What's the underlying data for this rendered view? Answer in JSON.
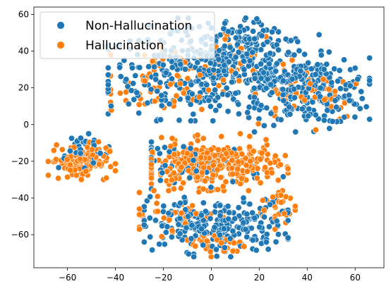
{
  "chart_data": {
    "type": "scatter",
    "title": "",
    "xlabel": "",
    "ylabel": "",
    "xlim": [
      -74,
      72
    ],
    "ylim": [
      -78,
      64
    ],
    "xticks": [
      -60,
      -40,
      -20,
      0,
      20,
      40,
      60
    ],
    "yticks": [
      -60,
      -40,
      -20,
      0,
      20,
      40,
      60
    ],
    "grid": false,
    "legend_position": "top-left",
    "series": [
      {
        "name": "Non-Hallucination",
        "color": "#1f77b4",
        "clusters": [
          {
            "cx": 0,
            "cy": 28,
            "sx": 22,
            "sy": 12,
            "n": 420,
            "xmin": -43,
            "xmax": 66,
            "ymin": 2,
            "ymax": 58
          },
          {
            "cx": 42,
            "cy": 18,
            "sx": 12,
            "sy": 9,
            "n": 220,
            "xmin": 18,
            "xmax": 66,
            "ymin": -4,
            "ymax": 43
          },
          {
            "cx": 15,
            "cy": 45,
            "sx": 7,
            "sy": 7,
            "n": 80,
            "xmin": 0,
            "xmax": 28,
            "ymin": 30,
            "ymax": 58
          },
          {
            "cx": -55,
            "cy": -14,
            "sx": 6,
            "sy": 5,
            "n": 40,
            "xmin": -68,
            "xmax": -40,
            "ymin": -26,
            "ymax": -5
          },
          {
            "cx": 0,
            "cy": -55,
            "sx": 16,
            "sy": 7,
            "n": 260,
            "xmin": -28,
            "xmax": 32,
            "ymin": -72,
            "ymax": -36
          },
          {
            "cx": -8,
            "cy": -22,
            "sx": 15,
            "sy": 6,
            "n": 70,
            "xmin": -25,
            "xmax": 30,
            "ymin": -35,
            "ymax": -5
          }
        ]
      },
      {
        "name": "Hallucination",
        "color": "#ff7f0e",
        "clusters": [
          {
            "cx": 0,
            "cy": -22,
            "sx": 14,
            "sy": 6,
            "n": 330,
            "xmin": -25,
            "xmax": 32,
            "ymin": -36,
            "ymax": -5
          },
          {
            "cx": -55,
            "cy": -20,
            "sx": 6,
            "sy": 5,
            "n": 110,
            "xmin": -68,
            "xmax": -40,
            "ymin": -30,
            "ymax": -6
          },
          {
            "cx": -22,
            "cy": 22,
            "sx": 12,
            "sy": 10,
            "n": 70,
            "xmin": -42,
            "xmax": 5,
            "ymin": 5,
            "ymax": 58
          },
          {
            "cx": -15,
            "cy": -48,
            "sx": 10,
            "sy": 6,
            "n": 40,
            "xmin": -30,
            "xmax": 5,
            "ymin": -65,
            "ymax": -36
          },
          {
            "cx": 28,
            "cy": -45,
            "sx": 4,
            "sy": 5,
            "n": 35,
            "xmin": 18,
            "xmax": 35,
            "ymin": -58,
            "ymax": -36
          },
          {
            "cx": 3,
            "cy": -65,
            "sx": 6,
            "sy": 4,
            "n": 35,
            "xmin": -10,
            "xmax": 15,
            "ymin": -72,
            "ymax": -56
          },
          {
            "cx": 40,
            "cy": 20,
            "sx": 12,
            "sy": 9,
            "n": 55,
            "xmin": 18,
            "xmax": 66,
            "ymin": -4,
            "ymax": 43
          },
          {
            "cx": 10,
            "cy": 35,
            "sx": 12,
            "sy": 10,
            "n": 25,
            "xmin": -5,
            "xmax": 30,
            "ymin": 15,
            "ymax": 58
          }
        ]
      }
    ]
  }
}
